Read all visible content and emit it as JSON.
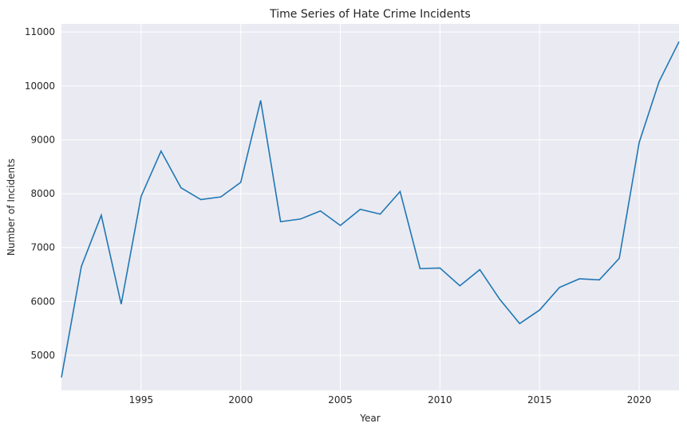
{
  "chart_data": {
    "type": "line",
    "title": "Time Series of Hate Crime Incidents",
    "xlabel": "Year",
    "ylabel": "Number of Incidents",
    "xlim": [
      1991,
      2022
    ],
    "ylim": [
      4350,
      11150
    ],
    "x_ticks": [
      1995,
      2000,
      2005,
      2010,
      2015,
      2020
    ],
    "y_ticks": [
      5000,
      6000,
      7000,
      8000,
      9000,
      10000,
      11000
    ],
    "grid": true,
    "background": "#eaeaf2",
    "line_color": "#1f77b4",
    "series": [
      {
        "x": [
          1991,
          1992,
          1993,
          1994,
          1995,
          1996,
          1997,
          1998,
          1999,
          2000,
          2001,
          2002,
          2003,
          2004,
          2005,
          2006,
          2007,
          2008,
          2009,
          2010,
          2011,
          2012,
          2013,
          2014,
          2015,
          2016,
          2017,
          2018,
          2019,
          2020,
          2021,
          2022
        ],
        "y": [
          4590,
          6650,
          7600,
          5950,
          7950,
          8790,
          8110,
          7890,
          7940,
          8210,
          9730,
          7480,
          7530,
          7680,
          7410,
          7710,
          7620,
          8040,
          6610,
          6620,
          6290,
          6590,
          6040,
          5590,
          5840,
          6260,
          6420,
          6400,
          6800,
          8950,
          10080,
          10820
        ]
      }
    ]
  }
}
